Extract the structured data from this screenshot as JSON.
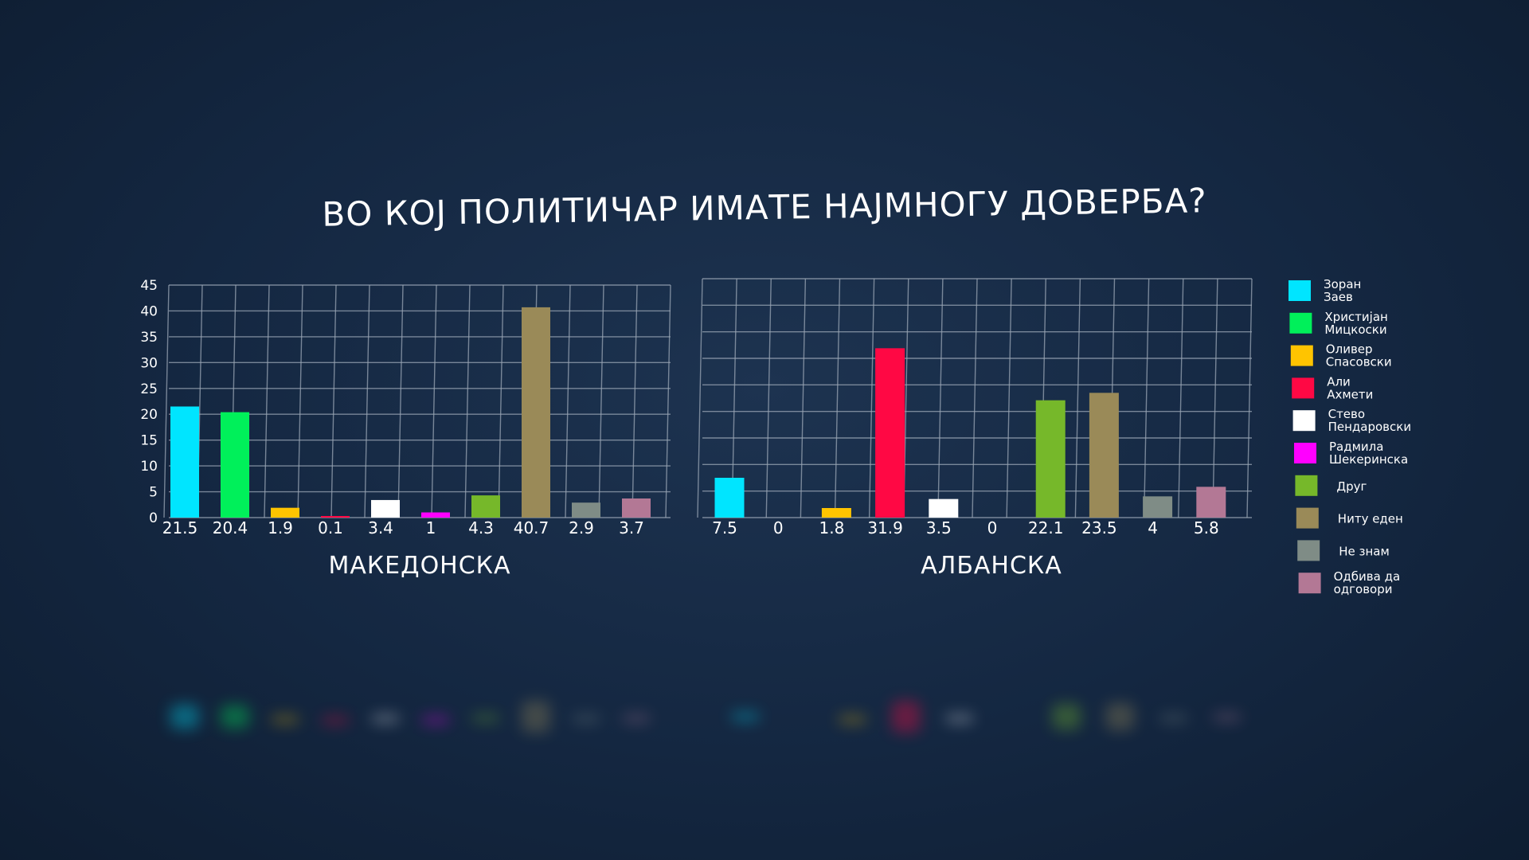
{
  "title": "ВО КОЈ ПОЛИТИЧАР ИМАТЕ НАЈМНОГУ ДОВЕРБА?",
  "colors": {
    "Зоран Заев": "#00e5ff",
    "Христијан Мицкоски": "#00f05a",
    "Оливер Спасовски": "#ffc400",
    "Али Ахмети": "#ff0844",
    "Стево Пендаровски": "#ffffff",
    "Радмила Шекеринска": "#ff00ff",
    "Друг": "#76b82a",
    "Ниту еден": "#9a8a58",
    "Не знам": "#7f8c86",
    "Одбива да одговори": "#b37895"
  },
  "legend": [
    {
      "line1": "Зоран",
      "line2": "Заев",
      "color": "#00e5ff"
    },
    {
      "line1": "Христијан",
      "line2": "Мицкоски",
      "color": "#00f05a"
    },
    {
      "line1": "Оливер",
      "line2": "Спасовски",
      "color": "#ffc400"
    },
    {
      "line1": "Али",
      "line2": "Ахмети",
      "color": "#ff0844"
    },
    {
      "line1": "Стево",
      "line2": "Пендаровски",
      "color": "#ffffff"
    },
    {
      "line1": "Радмила",
      "line2": "Шекеринска",
      "color": "#ff00ff"
    },
    {
      "line1": "Друг",
      "line2": "",
      "color": "#76b82a"
    },
    {
      "line1": "Ниту еден",
      "line2": "",
      "color": "#9a8a58"
    },
    {
      "line1": "Не знам",
      "line2": "",
      "color": "#7f8c86"
    },
    {
      "line1": "Одбива да",
      "line2": "одговори",
      "color": "#b37895"
    }
  ],
  "chart_data": [
    {
      "type": "bar",
      "xlabel": "МАКЕДОНСКА",
      "yticks": [
        "0",
        "5",
        "10",
        "15",
        "20",
        "25",
        "30",
        "35",
        "40",
        "45"
      ],
      "ylim": [
        0,
        45
      ],
      "grid": true,
      "categories": [
        "Зоран Заев",
        "Христијан Мицкоски",
        "Оливер Спасовски",
        "Али Ахмети",
        "Стево Пендаровски",
        "Радмила Шекеринска",
        "Друг",
        "Ниту еден",
        "Не знам",
        "Одбива да одговори"
      ],
      "values": [
        21.5,
        20.4,
        1.9,
        0.1,
        3.4,
        1,
        4.3,
        40.7,
        2.9,
        3.7
      ],
      "value_labels": [
        "21.5",
        "20.4",
        "1.9",
        "0.1",
        "3.4",
        "1",
        "4.3",
        "40.7",
        "2.9",
        "3.7"
      ]
    },
    {
      "type": "bar",
      "xlabel": "АЛБАНСКА",
      "ylim": [
        0,
        45
      ],
      "grid": true,
      "categories": [
        "Зоран Заев",
        "Христијан Мицкоски",
        "Оливер Спасовски",
        "Али Ахмети",
        "Стево Пендаровски",
        "Радмила Шекеринска",
        "Друг",
        "Ниту еден",
        "Не знам",
        "Одбива да одговори"
      ],
      "values": [
        7.5,
        0,
        1.8,
        31.9,
        3.5,
        0,
        22.1,
        23.5,
        4,
        5.8
      ],
      "value_labels": [
        "7.5",
        "0",
        "1.8",
        "31.9",
        "3.5",
        "0",
        "22.1",
        "23.5",
        "4",
        "5.8"
      ]
    }
  ]
}
